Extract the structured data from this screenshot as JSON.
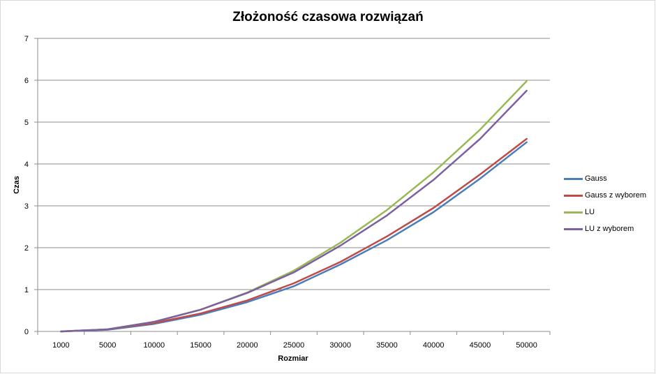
{
  "chart_data": {
    "type": "line",
    "title": "Złożoność czasowa rozwiązań",
    "xlabel": "Rozmiar",
    "ylabel": "Czas",
    "categories": [
      "1000",
      "5000",
      "10000",
      "15000",
      "20000",
      "25000",
      "30000",
      "35000",
      "40000",
      "45000",
      "50000"
    ],
    "ylim": [
      0,
      7
    ],
    "yticks": [
      "0",
      "1",
      "2",
      "3",
      "4",
      "5",
      "6",
      "7"
    ],
    "grid": true,
    "legend_position": "right",
    "series": [
      {
        "name": "Gauss",
        "color": "#4a7ebb",
        "values": [
          0,
          0.04,
          0.18,
          0.4,
          0.7,
          1.08,
          1.6,
          2.18,
          2.85,
          3.65,
          4.52
        ]
      },
      {
        "name": "Gauss z wyborem",
        "color": "#be4b48",
        "values": [
          0,
          0.05,
          0.2,
          0.43,
          0.74,
          1.15,
          1.66,
          2.27,
          2.95,
          3.75,
          4.6
        ]
      },
      {
        "name": "LU",
        "color": "#98b954",
        "values": [
          0,
          0.05,
          0.23,
          0.52,
          0.93,
          1.45,
          2.12,
          2.9,
          3.8,
          4.82,
          5.98
        ]
      },
      {
        "name": "LU z wyborem",
        "color": "#7d60a0",
        "values": [
          0,
          0.05,
          0.23,
          0.52,
          0.92,
          1.41,
          2.05,
          2.77,
          3.62,
          4.6,
          5.75
        ]
      }
    ]
  }
}
